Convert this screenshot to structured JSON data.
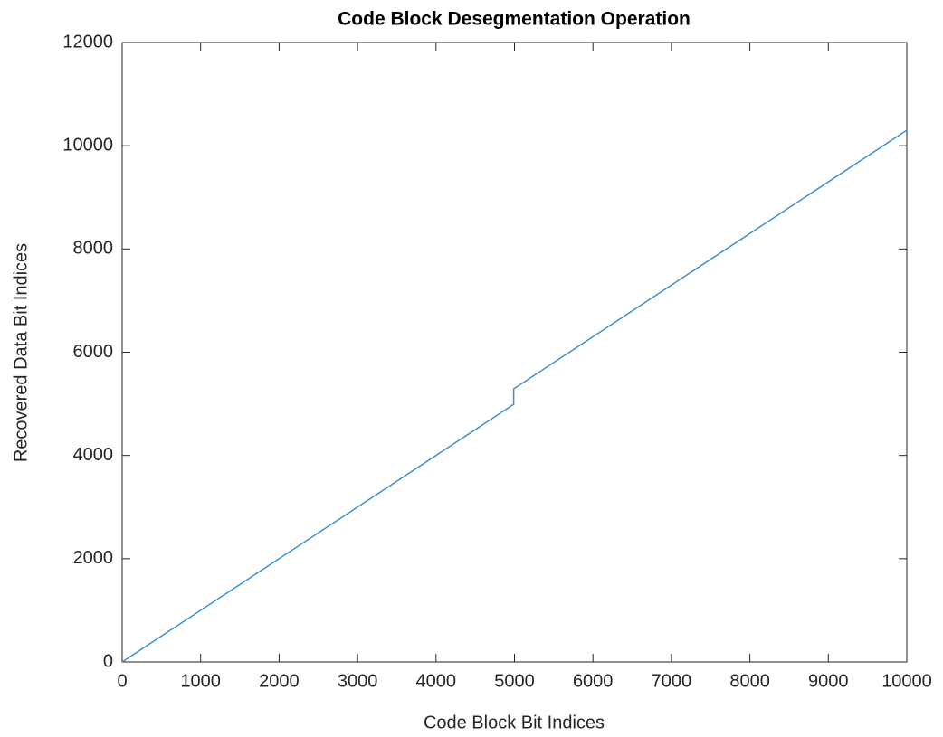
{
  "chart_data": {
    "type": "line",
    "title": "Code Block Desegmentation Operation",
    "x_label": "Code Block Bit Indices",
    "y_label": "Recovered Data Bit Indices",
    "x": [
      0,
      4990,
      4990,
      10000
    ],
    "series": [
      {
        "name": "Recovered Data Bit Indices",
        "color": "#3f8fd0",
        "values": [
          0,
          4990,
          5290,
          10300
        ]
      }
    ],
    "xlim": [
      0,
      10000
    ],
    "xticks": [
      0,
      1000,
      2000,
      3000,
      4000,
      5000,
      6000,
      7000,
      8000,
      9000,
      10000
    ],
    "ylim": [
      0,
      12000
    ],
    "yticks": [
      0,
      2000,
      4000,
      6000,
      8000,
      10000,
      12000
    ],
    "grid": false
  }
}
